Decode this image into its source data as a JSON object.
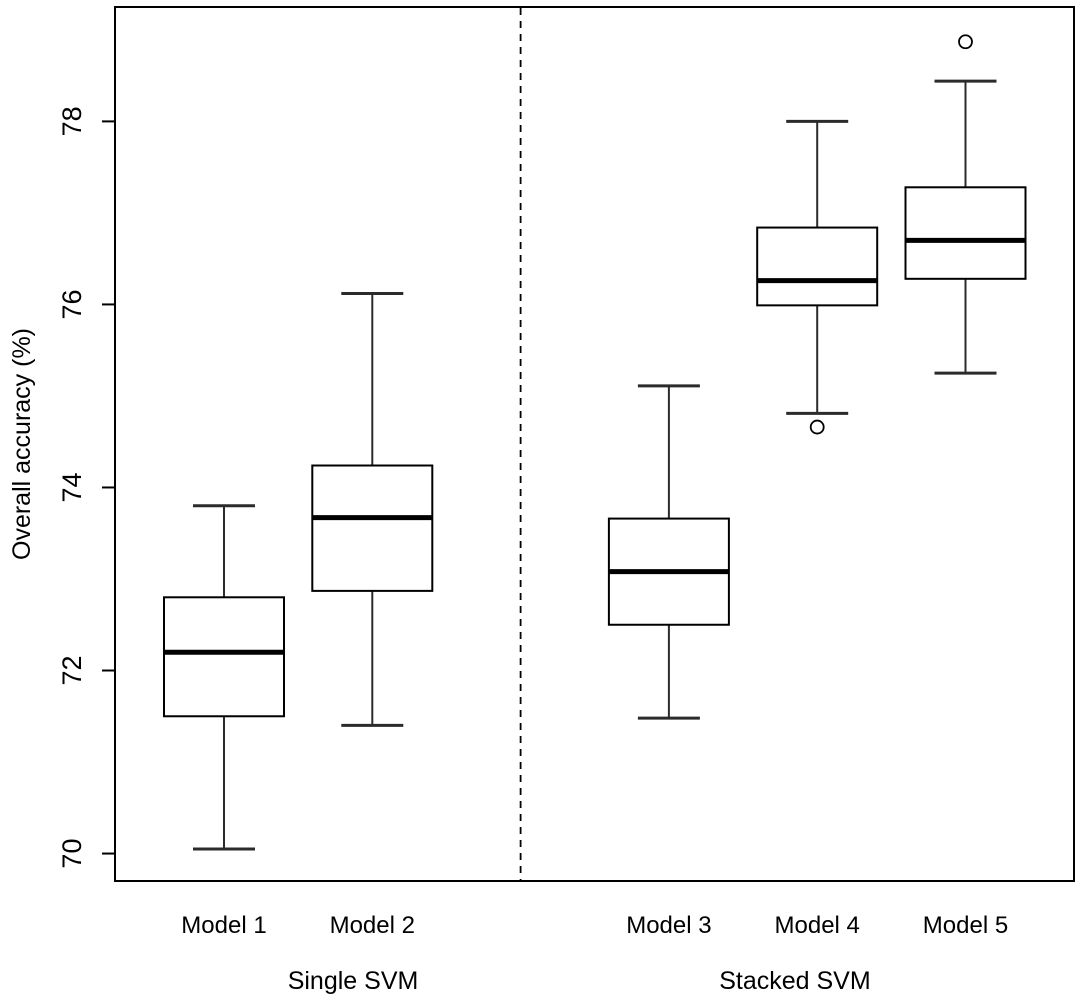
{
  "chart_data": {
    "type": "boxplot",
    "title": "",
    "ylabel": "Overall accuracy (%)",
    "xlabel": "",
    "ylim": [
      69.7,
      79.25
    ],
    "yticks": [
      70,
      72,
      74,
      76,
      78
    ],
    "grid": false,
    "legend": "none",
    "separator": {
      "style": "dashed",
      "position": 3
    },
    "groups": [
      {
        "label": "Single SVM",
        "label_position": 1.87,
        "members": [
          "Model 1",
          "Model 2"
        ]
      },
      {
        "label": "Stacked SVM",
        "label_position": 4.85,
        "members": [
          "Model 3",
          "Model 4",
          "Model 5"
        ]
      }
    ],
    "boxes": [
      {
        "label": "Model 1",
        "group": "Single SVM",
        "position": 1,
        "whisker_low": 70.05,
        "q1": 71.5,
        "median": 72.2,
        "q3": 72.8,
        "whisker_high": 73.8,
        "outliers": []
      },
      {
        "label": "Model 2",
        "group": "Single SVM",
        "position": 2,
        "whisker_low": 71.4,
        "q1": 72.87,
        "median": 73.67,
        "q3": 74.24,
        "whisker_high": 76.12,
        "outliers": []
      },
      {
        "label": "Model 3",
        "group": "Stacked SVM",
        "position": 4,
        "whisker_low": 71.48,
        "q1": 72.5,
        "median": 73.08,
        "q3": 73.66,
        "whisker_high": 75.11,
        "outliers": []
      },
      {
        "label": "Model 4",
        "group": "Stacked SVM",
        "position": 5,
        "whisker_low": 74.81,
        "q1": 75.99,
        "median": 76.26,
        "q3": 76.84,
        "whisker_high": 78.0,
        "outliers": [
          74.66
        ]
      },
      {
        "label": "Model 5",
        "group": "Stacked SVM",
        "position": 6,
        "whisker_low": 75.25,
        "q1": 76.28,
        "median": 76.7,
        "q3": 77.28,
        "whisker_high": 78.44,
        "outliers": [
          78.87
        ]
      }
    ],
    "colors": {
      "line": "#000000",
      "whisker": "#2b2b2b",
      "box_fill": "#ffffff",
      "background": "#ffffff"
    }
  }
}
